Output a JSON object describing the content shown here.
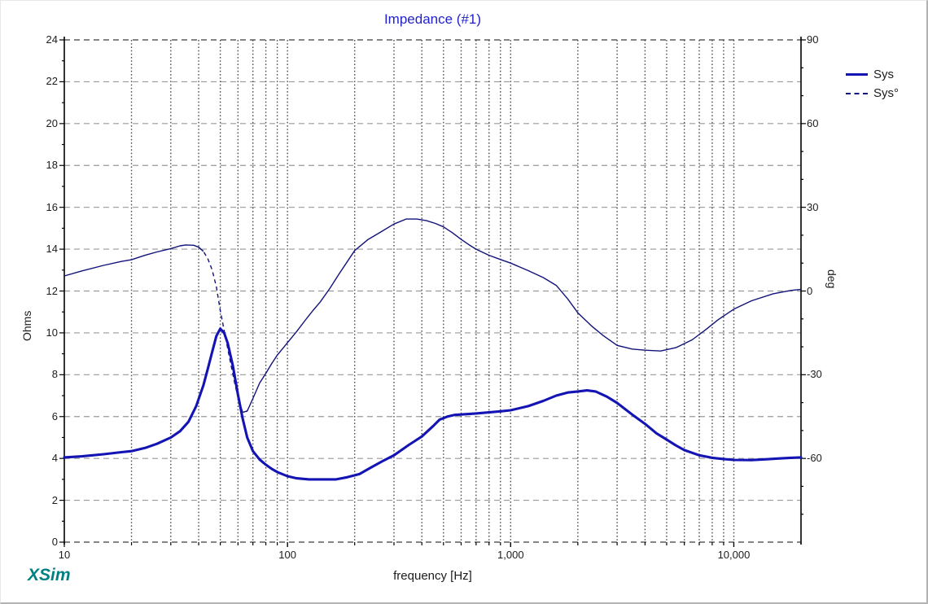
{
  "window": {
    "branding": "XSim"
  },
  "chart_data": {
    "type": "line",
    "title": "Impedance (#1)",
    "x_axis": {
      "label": "frequency [Hz]",
      "scale": "log",
      "min": 10,
      "max": 20000,
      "tick_labels": [
        {
          "value": 10,
          "label": "10"
        },
        {
          "value": 100,
          "label": "100"
        },
        {
          "value": 1000,
          "label": "1,000"
        },
        {
          "value": 10000,
          "label": "10,000"
        }
      ]
    },
    "y_left": {
      "label": "Ohms",
      "min": 0,
      "max": 24,
      "major_step": 2,
      "minor_step": 1,
      "tick_labels": [
        24,
        22,
        20,
        18,
        16,
        14,
        12,
        10,
        8,
        6,
        4,
        2,
        0
      ]
    },
    "y_right": {
      "label": "deg",
      "min": -90,
      "max": 90,
      "major_step": 30,
      "minor_step": 10,
      "tick_labels": [
        90,
        60,
        30,
        0,
        -30,
        -60
      ]
    },
    "grid": {
      "horizontal": "dashed-gray",
      "vertical": "dotted-dark",
      "log_minor_lines": true
    },
    "legend_position": "top-right",
    "series": [
      {
        "name": "Sys",
        "axis": "left",
        "unit": "ohm",
        "color": "#1414b4",
        "line": "solid",
        "width": 3.1,
        "points": [
          [
            10,
            4.05
          ],
          [
            12,
            4.1
          ],
          [
            15,
            4.2
          ],
          [
            18,
            4.3
          ],
          [
            20,
            4.35
          ],
          [
            23,
            4.5
          ],
          [
            26,
            4.7
          ],
          [
            30,
            5.0
          ],
          [
            33,
            5.3
          ],
          [
            36,
            5.75
          ],
          [
            39,
            6.5
          ],
          [
            42,
            7.5
          ],
          [
            44,
            8.3
          ],
          [
            46,
            9.1
          ],
          [
            48,
            9.85
          ],
          [
            50,
            10.2
          ],
          [
            52,
            10.0
          ],
          [
            54,
            9.5
          ],
          [
            57,
            8.4
          ],
          [
            60,
            7.05
          ],
          [
            63,
            5.9
          ],
          [
            66,
            5.0
          ],
          [
            70,
            4.35
          ],
          [
            75,
            3.95
          ],
          [
            80,
            3.7
          ],
          [
            85,
            3.5
          ],
          [
            90,
            3.35
          ],
          [
            100,
            3.15
          ],
          [
            110,
            3.05
          ],
          [
            125,
            3.0
          ],
          [
            145,
            3.0
          ],
          [
            165,
            3.0
          ],
          [
            185,
            3.1
          ],
          [
            210,
            3.25
          ],
          [
            240,
            3.6
          ],
          [
            270,
            3.9
          ],
          [
            300,
            4.15
          ],
          [
            350,
            4.65
          ],
          [
            400,
            5.05
          ],
          [
            450,
            5.55
          ],
          [
            480,
            5.85
          ],
          [
            520,
            6.0
          ],
          [
            560,
            6.08
          ],
          [
            600,
            6.1
          ],
          [
            700,
            6.15
          ],
          [
            800,
            6.2
          ],
          [
            900,
            6.25
          ],
          [
            1000,
            6.3
          ],
          [
            1200,
            6.5
          ],
          [
            1400,
            6.75
          ],
          [
            1600,
            7.0
          ],
          [
            1800,
            7.15
          ],
          [
            2000,
            7.2
          ],
          [
            2200,
            7.25
          ],
          [
            2400,
            7.2
          ],
          [
            2700,
            6.95
          ],
          [
            3000,
            6.65
          ],
          [
            3500,
            6.1
          ],
          [
            4000,
            5.65
          ],
          [
            4500,
            5.2
          ],
          [
            5000,
            4.9
          ],
          [
            5500,
            4.62
          ],
          [
            6000,
            4.4
          ],
          [
            7000,
            4.15
          ],
          [
            8000,
            4.03
          ],
          [
            9000,
            3.97
          ],
          [
            10000,
            3.93
          ],
          [
            12000,
            3.92
          ],
          [
            14000,
            3.96
          ],
          [
            16000,
            4.0
          ],
          [
            18000,
            4.03
          ],
          [
            20000,
            4.05
          ]
        ]
      },
      {
        "name": "Sys°",
        "axis": "right",
        "unit": "deg",
        "color": "#12127a",
        "line": "dashed",
        "width": 1.4,
        "points": [
          [
            10,
            5.4
          ],
          [
            12,
            7.2
          ],
          [
            15,
            9.2
          ],
          [
            18,
            10.6
          ],
          [
            20,
            11.2
          ],
          [
            23,
            12.8
          ],
          [
            26,
            14.0
          ],
          [
            30,
            15.2
          ],
          [
            33,
            16.2
          ],
          [
            35,
            16.5
          ],
          [
            38,
            16.4
          ],
          [
            40,
            15.7
          ],
          [
            42,
            14.2
          ],
          [
            44,
            11.5
          ],
          [
            46,
            7.5
          ],
          [
            48,
            1.5
          ],
          [
            50,
            -7
          ],
          [
            52,
            -14
          ],
          [
            55,
            -24
          ],
          [
            58,
            -33
          ],
          [
            60,
            -38
          ],
          [
            63,
            -43.5
          ],
          [
            66,
            -43
          ],
          [
            70,
            -38.5
          ],
          [
            75,
            -33
          ],
          [
            80,
            -29.5
          ],
          [
            85,
            -26
          ],
          [
            90,
            -23
          ],
          [
            100,
            -18.5
          ],
          [
            110,
            -14.5
          ],
          [
            120,
            -10.5
          ],
          [
            130,
            -7
          ],
          [
            140,
            -4
          ],
          [
            155,
            1
          ],
          [
            170,
            6
          ],
          [
            200,
            14.5
          ],
          [
            230,
            18.5
          ],
          [
            260,
            21
          ],
          [
            300,
            24
          ],
          [
            340,
            25.8
          ],
          [
            380,
            25.8
          ],
          [
            420,
            25.2
          ],
          [
            460,
            24.2
          ],
          [
            500,
            23
          ],
          [
            550,
            20.8
          ],
          [
            600,
            18.5
          ],
          [
            650,
            16.6
          ],
          [
            700,
            15
          ],
          [
            800,
            12.8
          ],
          [
            900,
            11.3
          ],
          [
            1000,
            10
          ],
          [
            1200,
            7.3
          ],
          [
            1400,
            4.8
          ],
          [
            1600,
            2
          ],
          [
            1800,
            -2.8
          ],
          [
            2000,
            -7.8
          ],
          [
            2300,
            -12.5
          ],
          [
            2600,
            -16
          ],
          [
            3000,
            -19.5
          ],
          [
            3500,
            -20.8
          ],
          [
            4000,
            -21.2
          ],
          [
            4700,
            -21.5
          ],
          [
            5500,
            -20.3
          ],
          [
            6500,
            -17.5
          ],
          [
            7500,
            -13.8
          ],
          [
            8500,
            -10.3
          ],
          [
            10000,
            -6.5
          ],
          [
            12000,
            -3.5
          ],
          [
            15000,
            -1
          ],
          [
            18000,
            0.2
          ],
          [
            20000,
            0.6
          ]
        ]
      }
    ]
  }
}
